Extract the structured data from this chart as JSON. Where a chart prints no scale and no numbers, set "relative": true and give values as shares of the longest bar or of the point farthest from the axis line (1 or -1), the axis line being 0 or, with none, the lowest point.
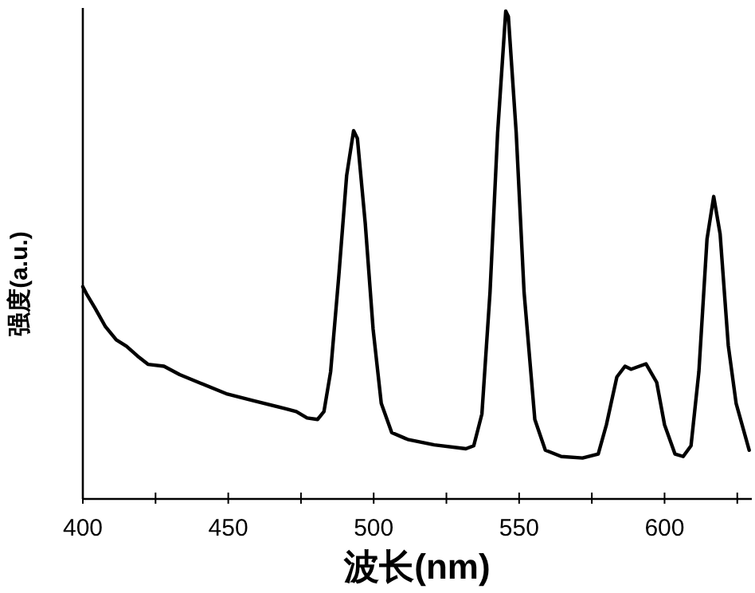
{
  "chart_data": {
    "type": "line",
    "xlabel": "波长(nm)",
    "ylabel": "强度(a.u.)",
    "relative": true,
    "tick_labels": "x",
    "color": "#000000",
    "xlim": [
      400,
      630
    ],
    "xticks": [
      400,
      {
        "value": 425,
        "label": null
      },
      450,
      {
        "value": 475,
        "label": null
      },
      500,
      {
        "value": 525,
        "label": null
      },
      550,
      {
        "value": 575,
        "label": null
      },
      600,
      {
        "value": 625,
        "label": null
      }
    ],
    "x": [
      400,
      401.5,
      404.2,
      407.8,
      411.5,
      415,
      418.8,
      422.4,
      427.9,
      433.3,
      440.6,
      449.7,
      458.8,
      469.8,
      473.4,
      477.1,
      480.7,
      482.9,
      485.2,
      488,
      490.7,
      493.1,
      494.4,
      497.1,
      499.8,
      502.6,
      506.2,
      511.7,
      520.8,
      531.7,
      534.4,
      537.2,
      540,
      542.6,
      545.4,
      546.3,
      549,
      551.7,
      555.4,
      559,
      564.5,
      571.8,
      577.2,
      580,
      583.6,
      586.4,
      588.5,
      593.6,
      597.3,
      600,
      603.6,
      606.4,
      609.1,
      611.8,
      614.6,
      616.9,
      619.1,
      621.9,
      624.6,
      629.1
    ],
    "values": [
      0.435,
      0.418,
      0.391,
      0.353,
      0.326,
      0.313,
      0.293,
      0.276,
      0.272,
      0.255,
      0.237,
      0.215,
      0.201,
      0.185,
      0.179,
      0.166,
      0.163,
      0.179,
      0.261,
      0.457,
      0.663,
      0.755,
      0.739,
      0.565,
      0.348,
      0.196,
      0.136,
      0.122,
      0.111,
      0.103,
      0.109,
      0.174,
      0.424,
      0.75,
      1.0,
      0.989,
      0.75,
      0.424,
      0.163,
      0.1,
      0.087,
      0.084,
      0.092,
      0.152,
      0.25,
      0.272,
      0.266,
      0.277,
      0.239,
      0.152,
      0.092,
      0.087,
      0.109,
      0.261,
      0.533,
      0.62,
      0.543,
      0.315,
      0.196,
      0.1
    ]
  }
}
